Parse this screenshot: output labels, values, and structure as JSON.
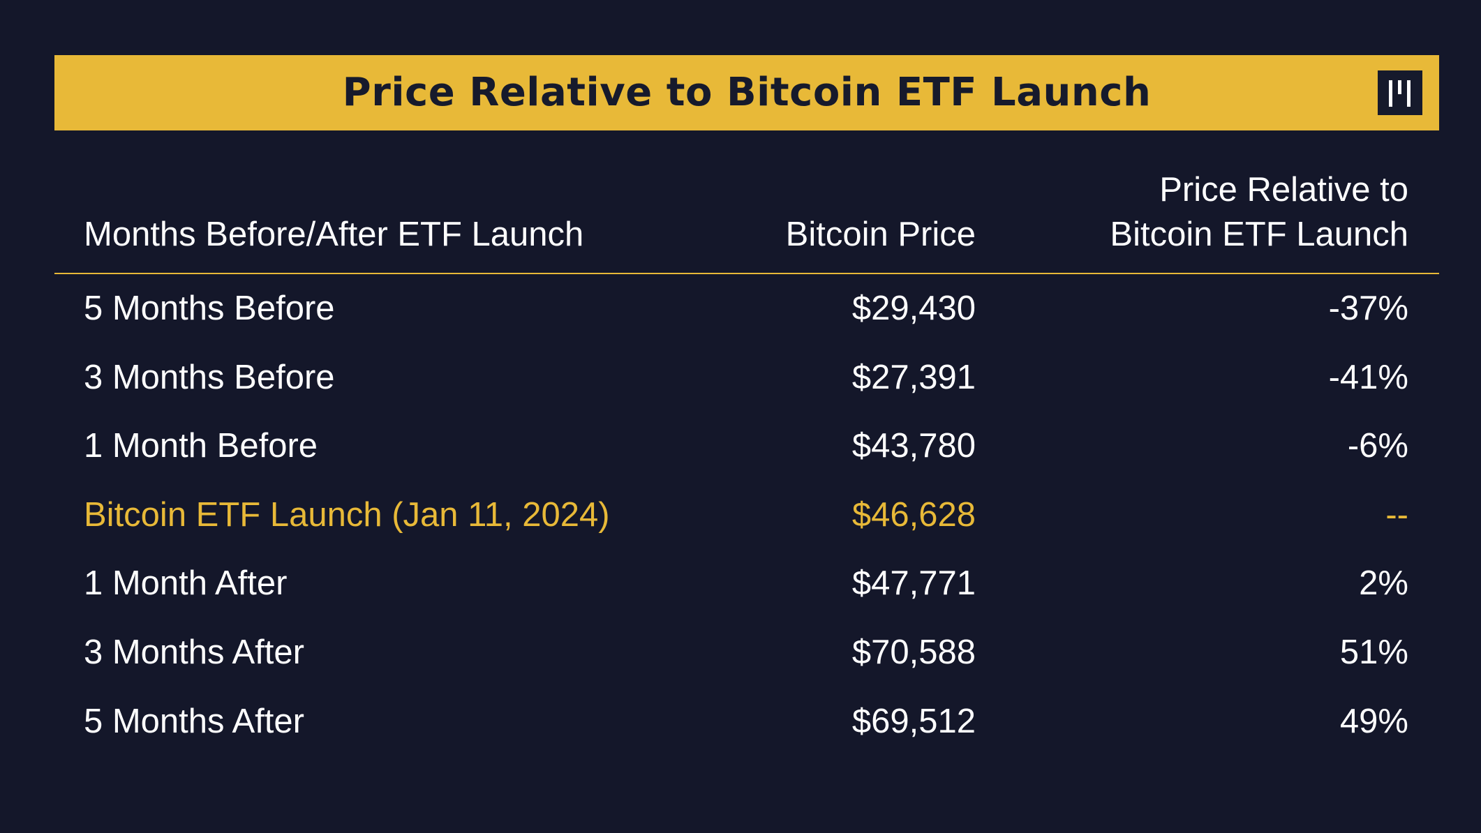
{
  "chart_data": {
    "type": "table",
    "title": "Price Relative to Bitcoin ETF Launch",
    "columns": [
      "Months Before/After ETF Launch",
      "Bitcoin Price",
      "Price Relative to Bitcoin ETF Launch"
    ],
    "rows": [
      {
        "period": "5 Months Before",
        "price": "$29,430",
        "relative": "-37%"
      },
      {
        "period": "3 Months Before",
        "price": "$27,391",
        "relative": "-41%"
      },
      {
        "period": "1 Month Before",
        "price": "$43,780",
        "relative": "-6%"
      },
      {
        "period": "Bitcoin ETF Launch (Jan 11, 2024)",
        "price": "$46,628",
        "relative": "--"
      },
      {
        "period": "1 Month After",
        "price": "$47,771",
        "relative": "2%"
      },
      {
        "period": "3 Months After",
        "price": "$70,588",
        "relative": "51%"
      },
      {
        "period": "5 Months After",
        "price": "$69,512",
        "relative": "49%"
      }
    ],
    "highlight_row": 3
  },
  "header": {
    "title": "Price Relative to Bitcoin ETF Launch",
    "col1": "Months Before/After ETF Launch",
    "col2": "Bitcoin Price",
    "col3_line1": "Price Relative to",
    "col3_line2": "Bitcoin ETF Launch"
  },
  "colors": {
    "background": "#14172a",
    "accent": "#e8b938",
    "text": "#ffffff"
  },
  "icons": {
    "logo": "brand-logo-icon"
  }
}
